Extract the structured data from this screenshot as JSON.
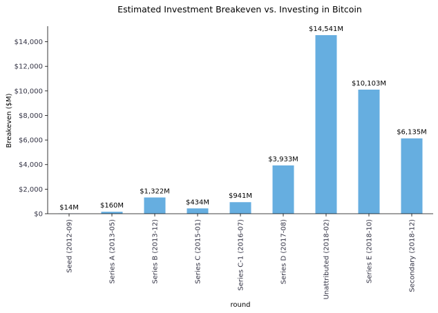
{
  "chart_data": {
    "type": "bar",
    "title": "Estimated Investment Breakeven vs. Investing in Bitcoin",
    "xlabel": "round",
    "ylabel": "Breakeven ($M)",
    "categories": [
      "Seed (2012-09)",
      "Series A (2013-05)",
      "Series B (2013-12)",
      "Series C (2015-01)",
      "Series C-1 (2016-07)",
      "Series D (2017-08)",
      "Unattributed (2018-02)",
      "Series E (2018-10)",
      "Secondary (2018-12)"
    ],
    "values": [
      14,
      160,
      1322,
      434,
      941,
      3933,
      14541,
      10103,
      6135
    ],
    "data_labels": [
      "$14M",
      "$160M",
      "$1,322M",
      "$434M",
      "$941M",
      "$3,933M",
      "$14,541M",
      "$10,103M",
      "$6,135M"
    ],
    "yticks": [
      0,
      2000,
      4000,
      6000,
      8000,
      10000,
      12000,
      14000
    ],
    "ytick_labels": [
      "$0",
      "$2,000",
      "$4,000",
      "$6,000",
      "$8,000",
      "$10,000",
      "$12,000",
      "$14,000"
    ],
    "ylim": [
      0,
      15268
    ],
    "grid": false,
    "legend": false,
    "bar_color": "#66aee0"
  }
}
